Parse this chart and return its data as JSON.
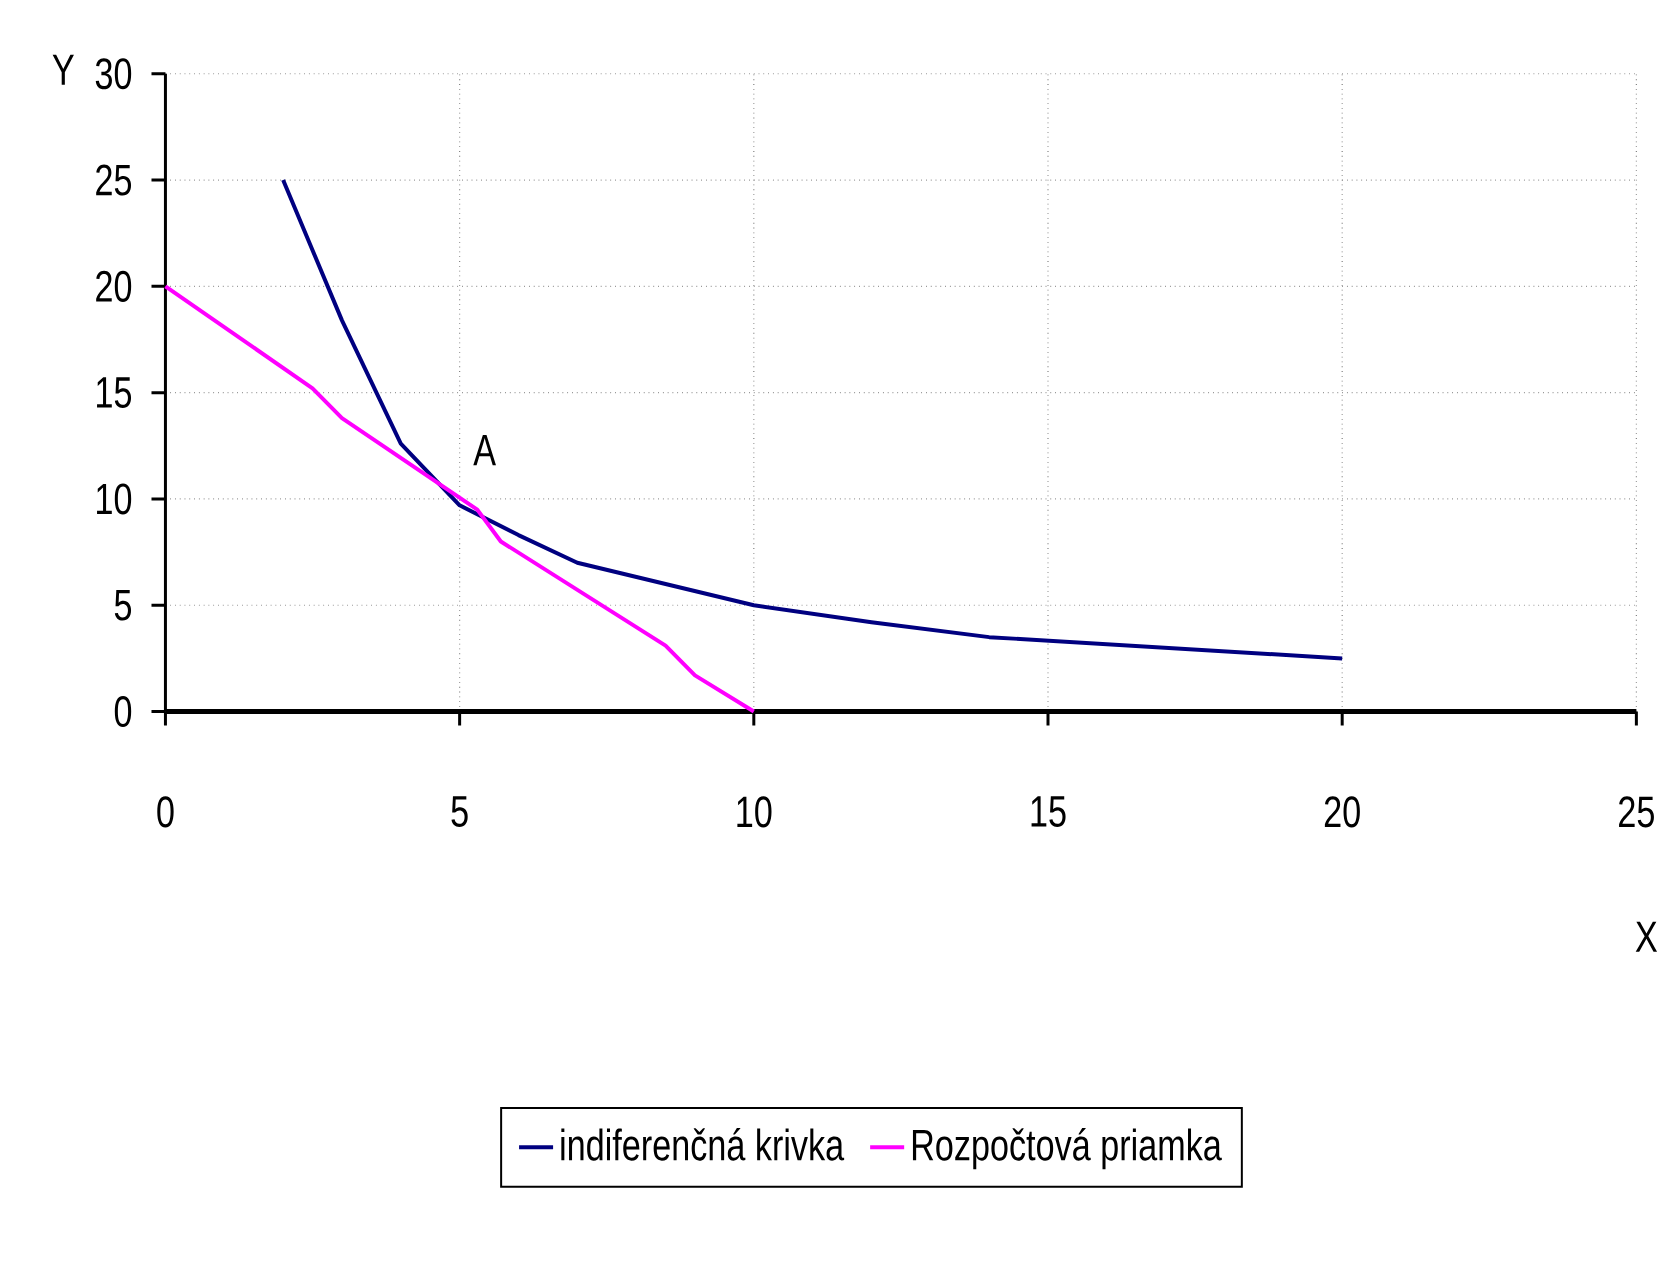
{
  "chart_data": {
    "type": "line",
    "xlabel": "X",
    "ylabel": "Y",
    "series": [
      {
        "name": "indiferenčná krivka",
        "color": "#000080",
        "x": [
          2,
          2.5,
          3,
          4,
          5,
          6,
          7,
          10,
          12,
          14,
          20
        ],
        "values": [
          25,
          21.7,
          18.4,
          12.6,
          9.7,
          8.3,
          7.0,
          5.0,
          4.2,
          3.5,
          2.5
        ]
      },
      {
        "name": "Rozpočtová priamka",
        "color": "#ff00ff",
        "x": [
          0,
          2.5,
          3,
          5.3,
          5.7,
          8.5,
          9,
          10
        ],
        "values": [
          20,
          15.2,
          13.8,
          9.5,
          8.0,
          3.1,
          1.7,
          0
        ]
      }
    ],
    "xlim": [
      0,
      25
    ],
    "ylim": [
      0,
      30
    ],
    "xticks": [
      0,
      5,
      10,
      15,
      20,
      25
    ],
    "yticks": [
      0,
      5,
      10,
      15,
      20,
      25,
      30
    ],
    "annotations": [
      "A"
    ],
    "grid": true,
    "legend": "bottom",
    "marker": "none",
    "line_style": "solid"
  }
}
